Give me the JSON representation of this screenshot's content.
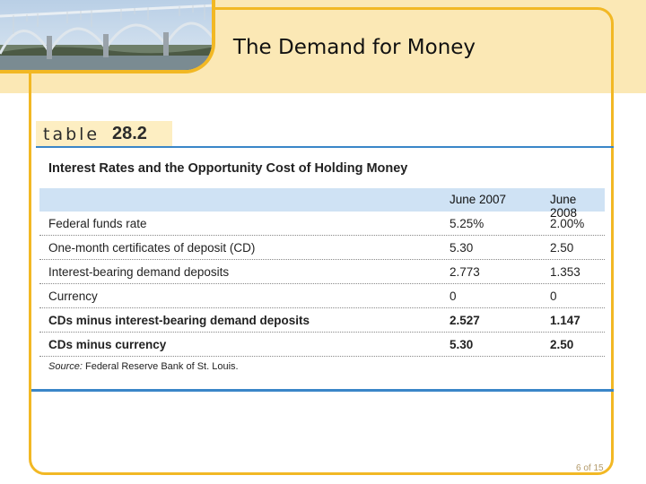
{
  "slide": {
    "title": "The Demand for Money",
    "page_number": "6 of 15"
  },
  "table": {
    "label_word": "table",
    "label_number": "28.2",
    "title": "Interest Rates and the Opportunity Cost of Holding Money",
    "columns": [
      "June 2007",
      "June 2008"
    ],
    "rows": [
      {
        "label": "Federal funds rate",
        "v2007": "5.25%",
        "v2008": "2.00%",
        "bold": false
      },
      {
        "label": "One-month certificates of deposit (CD)",
        "v2007": "5.30",
        "v2008": "2.50",
        "bold": false
      },
      {
        "label": "Interest-bearing demand deposits",
        "v2007": "2.773",
        "v2008": "1.353",
        "bold": false
      },
      {
        "label": "Currency",
        "v2007": "0",
        "v2008": "0",
        "bold": false
      },
      {
        "label": "CDs minus interest-bearing demand deposits",
        "v2007": "2.527",
        "v2008": "1.147",
        "bold": true
      },
      {
        "label": "CDs minus currency",
        "v2007": "5.30",
        "v2008": "2.50",
        "bold": true
      }
    ],
    "source_label": "Source:",
    "source_text": " Federal Reserve Bank of St. Louis."
  },
  "colors": {
    "accent_gold": "#f2b824",
    "header_band": "#fbe8b5",
    "table_blue": "#3a86c8",
    "header_row": "#cfe2f4"
  }
}
